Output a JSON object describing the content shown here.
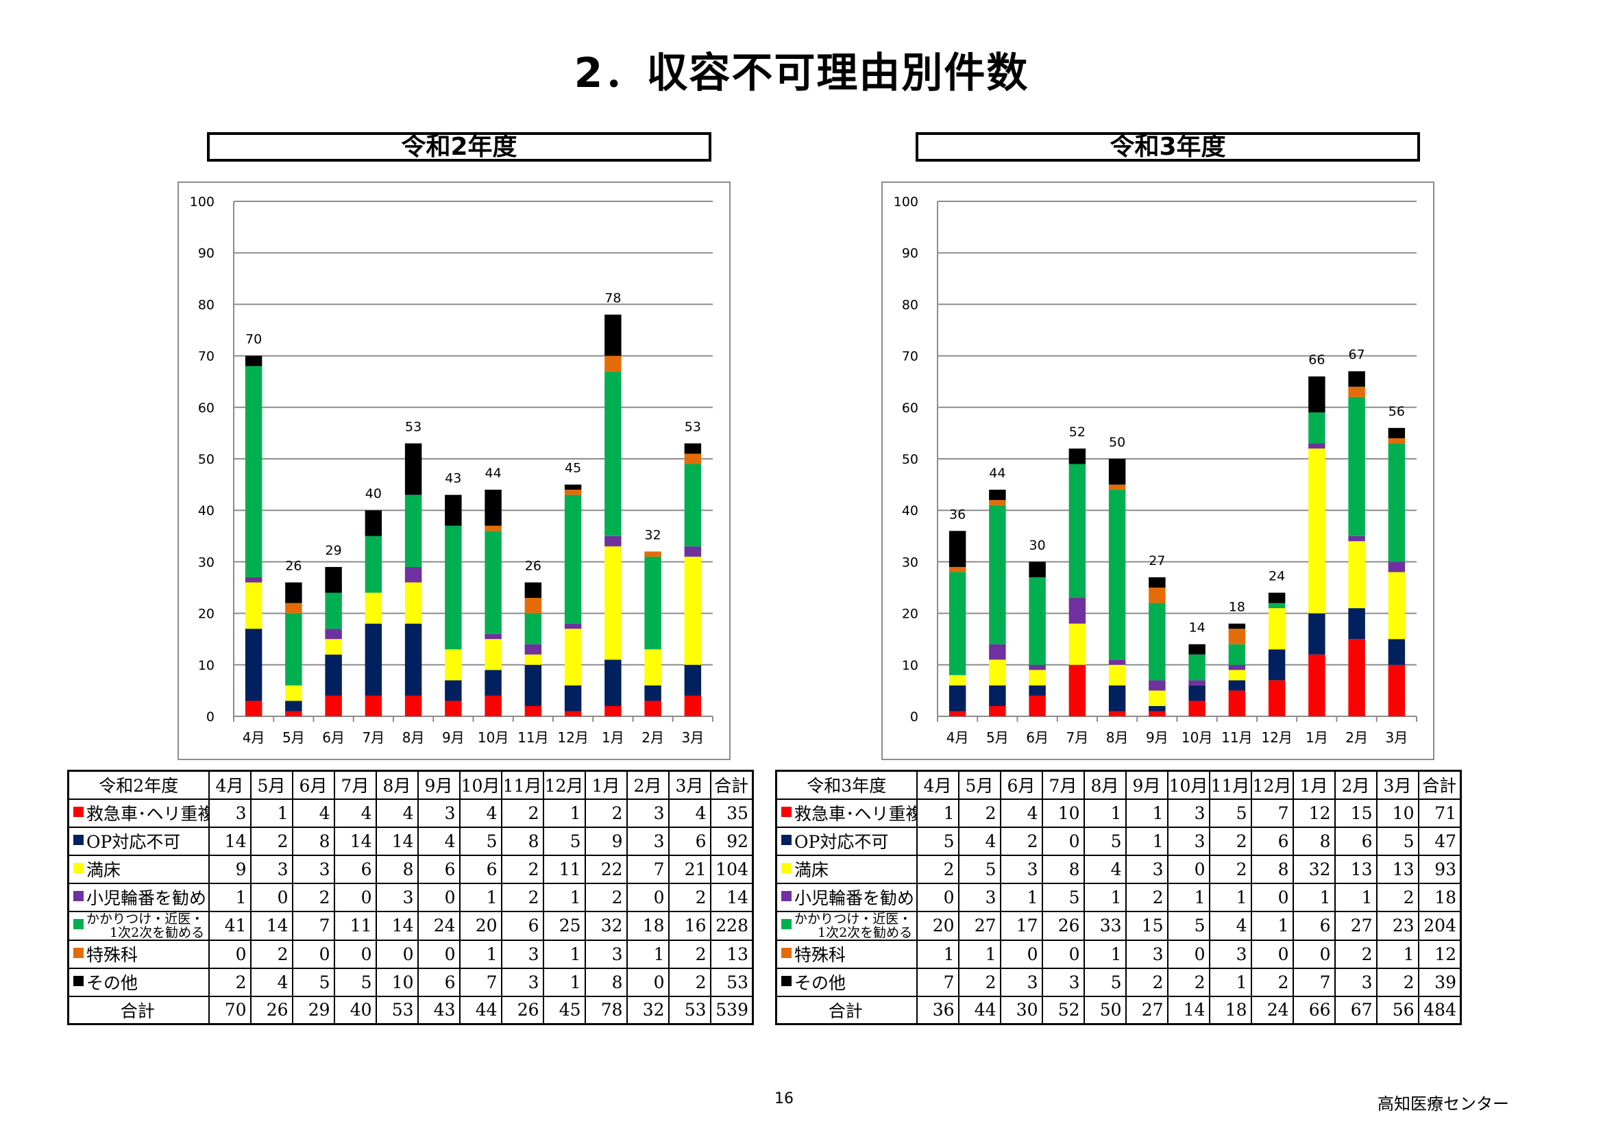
{
  "title": "2．収容不可理由別件数",
  "page_number": "16",
  "organization": "高知医療センター",
  "categories": [
    "4月",
    "5月",
    "6月",
    "7月",
    "8月",
    "9月",
    "10月",
    "11月",
    "12月",
    "1月",
    "2月",
    "3月"
  ],
  "series_defs": [
    {
      "name": "救急車･ヘリ重複",
      "color": "#ff0000"
    },
    {
      "name": "OP対応不可",
      "color": "#002060"
    },
    {
      "name": "満床",
      "color": "#ffff00"
    },
    {
      "name": "小児輪番を勧める",
      "color": "#7030a0"
    },
    {
      "name": "かかりつけ・近医・1次2次を勧める",
      "line1": "かかりつけ・近医・",
      "line2": "1次2次を勧める",
      "color": "#00b050"
    },
    {
      "name": "特殊科",
      "color": "#e36c09"
    },
    {
      "name": "その他",
      "color": "#000000"
    }
  ],
  "chart_data": [
    {
      "type": "bar",
      "stacked": true,
      "title": "令和2年度",
      "ylim": [
        0,
        100
      ],
      "yticks": [
        0,
        10,
        20,
        30,
        40,
        50,
        60,
        70,
        80,
        90,
        100
      ],
      "grid": true,
      "categories": [
        "4月",
        "5月",
        "6月",
        "7月",
        "8月",
        "9月",
        "10月",
        "11月",
        "12月",
        "1月",
        "2月",
        "3月"
      ],
      "series": [
        {
          "name": "救急車･ヘリ重複",
          "values": [
            3,
            1,
            4,
            4,
            4,
            3,
            4,
            2,
            1,
            2,
            3,
            4
          ]
        },
        {
          "name": "OP対応不可",
          "values": [
            14,
            2,
            8,
            14,
            14,
            4,
            5,
            8,
            5,
            9,
            3,
            6
          ]
        },
        {
          "name": "満床",
          "values": [
            9,
            3,
            3,
            6,
            8,
            6,
            6,
            2,
            11,
            22,
            7,
            21
          ]
        },
        {
          "name": "小児輪番を勧める",
          "values": [
            1,
            0,
            2,
            0,
            3,
            0,
            1,
            2,
            1,
            2,
            0,
            2
          ]
        },
        {
          "name": "かかりつけ・近医・1次2次を勧める",
          "values": [
            41,
            14,
            7,
            11,
            14,
            24,
            20,
            6,
            25,
            32,
            18,
            16
          ]
        },
        {
          "name": "特殊科",
          "values": [
            0,
            2,
            0,
            0,
            0,
            0,
            1,
            3,
            1,
            3,
            1,
            2
          ]
        },
        {
          "name": "その他",
          "values": [
            2,
            4,
            5,
            5,
            10,
            6,
            7,
            3,
            1,
            8,
            0,
            2
          ]
        }
      ],
      "totals": [
        70,
        26,
        29,
        40,
        53,
        43,
        44,
        26,
        45,
        78,
        32,
        53
      ],
      "grand_total": 539
    },
    {
      "type": "bar",
      "stacked": true,
      "title": "令和3年度",
      "ylim": [
        0,
        100
      ],
      "yticks": [
        0,
        10,
        20,
        30,
        40,
        50,
        60,
        70,
        80,
        90,
        100
      ],
      "grid": true,
      "categories": [
        "4月",
        "5月",
        "6月",
        "7月",
        "8月",
        "9月",
        "10月",
        "11月",
        "12月",
        "1月",
        "2月",
        "3月"
      ],
      "series": [
        {
          "name": "救急車･ヘリ重複",
          "values": [
            1,
            2,
            4,
            10,
            1,
            1,
            3,
            5,
            7,
            12,
            15,
            10
          ]
        },
        {
          "name": "OP対応不可",
          "values": [
            5,
            4,
            2,
            0,
            5,
            1,
            3,
            2,
            6,
            8,
            6,
            5
          ]
        },
        {
          "name": "満床",
          "values": [
            2,
            5,
            3,
            8,
            4,
            3,
            0,
            2,
            8,
            32,
            13,
            13
          ]
        },
        {
          "name": "小児輪番を勧める",
          "values": [
            0,
            3,
            1,
            5,
            1,
            2,
            1,
            1,
            0,
            1,
            1,
            2
          ]
        },
        {
          "name": "かかりつけ・近医・1次2次を勧める",
          "values": [
            20,
            27,
            17,
            26,
            33,
            15,
            5,
            4,
            1,
            6,
            27,
            23
          ]
        },
        {
          "name": "特殊科",
          "values": [
            1,
            1,
            0,
            0,
            1,
            3,
            0,
            3,
            0,
            0,
            2,
            1
          ]
        },
        {
          "name": "その他",
          "values": [
            7,
            2,
            3,
            3,
            5,
            2,
            2,
            1,
            2,
            7,
            3,
            2
          ]
        }
      ],
      "totals": [
        36,
        44,
        30,
        52,
        50,
        27,
        14,
        18,
        24,
        66,
        67,
        56
      ],
      "grand_total": 484
    }
  ],
  "tables": [
    {
      "corner": "令和2年度",
      "total_header": "合計",
      "total_row_label": "合計"
    },
    {
      "corner": "令和3年度",
      "total_header": "合計",
      "total_row_label": "合計"
    }
  ]
}
